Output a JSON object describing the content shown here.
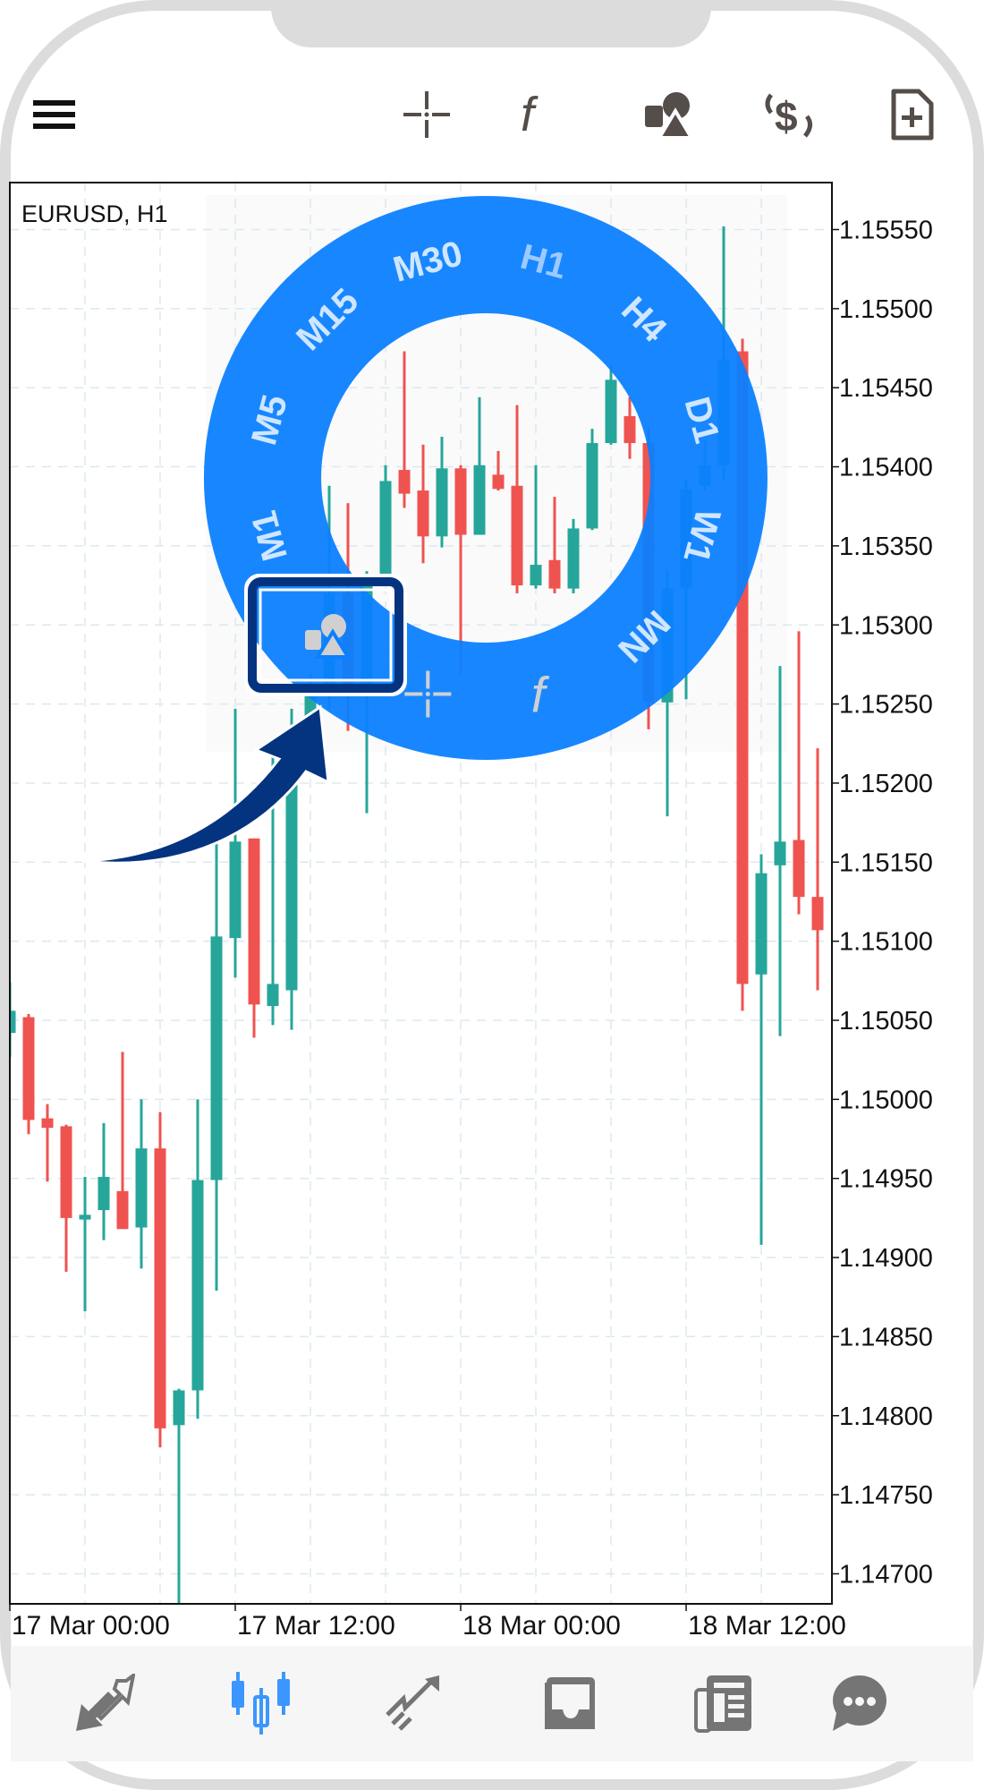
{
  "toolbar": {
    "icons": [
      "menu-icon",
      "crosshair-icon",
      "function-icon",
      "objects-icon",
      "trade-icon",
      "new-order-icon"
    ]
  },
  "chart": {
    "symbol_label": "EURUSD, H1",
    "price_labels": [
      "1.15550",
      "1.15500",
      "1.15450",
      "1.15400",
      "1.15350",
      "1.15300",
      "1.15250",
      "1.15200",
      "1.15150",
      "1.15100",
      "1.15050",
      "1.15000",
      "1.14950",
      "1.14900",
      "1.14850",
      "1.14800",
      "1.14750",
      "1.14700"
    ],
    "time_labels": [
      "17 Mar 00:00",
      "17 Mar 12:00",
      "18 Mar 00:00",
      "18 Mar 12:00"
    ],
    "colors": {
      "bull": "#26a69a",
      "bear": "#ef5350",
      "grid": "#dde8ef"
    }
  },
  "chart_data": {
    "type": "candlestick",
    "symbol": "EURUSD",
    "timeframe": "H1",
    "x_start": "17 Mar 00:00",
    "interval_hours": 1,
    "ylim": [
      1.1468,
      1.1559
    ],
    "grid": true,
    "ohlc": [
      [
        1.15042,
        1.15074,
        1.15027,
        1.15056
      ],
      [
        1.15052,
        1.15054,
        1.14978,
        1.14987
      ],
      [
        1.14988,
        1.14997,
        1.14948,
        1.14982
      ],
      [
        1.14983,
        1.14984,
        1.14891,
        1.14925
      ],
      [
        1.14924,
        1.14951,
        1.14866,
        1.14927
      ],
      [
        1.1493,
        1.14985,
        1.14911,
        1.14951
      ],
      [
        1.14942,
        1.1503,
        1.14918,
        1.14918
      ],
      [
        1.14919,
        1.15,
        1.14893,
        1.14969
      ],
      [
        1.14969,
        1.14992,
        1.1478,
        1.14792
      ],
      [
        1.14794,
        1.14817,
        1.1468,
        1.14816
      ],
      [
        1.14816,
        1.15,
        1.14798,
        1.14949
      ],
      [
        1.14949,
        1.15177,
        1.14879,
        1.15103
      ],
      [
        1.15102,
        1.15247,
        1.15077,
        1.15163
      ],
      [
        1.15165,
        1.15165,
        1.15039,
        1.1506
      ],
      [
        1.15059,
        1.15226,
        1.15047,
        1.15073
      ],
      [
        1.15069,
        1.15247,
        1.15044,
        1.15234
      ],
      [
        1.15234,
        1.15269,
        1.15218,
        1.15262
      ],
      [
        1.15262,
        1.15388,
        1.15247,
        1.1532
      ],
      [
        1.1532,
        1.15377,
        1.15233,
        1.15262
      ],
      [
        1.15262,
        1.15334,
        1.15181,
        1.15332
      ],
      [
        1.15332,
        1.15401,
        1.15327,
        1.15391
      ],
      [
        1.15398,
        1.15473,
        1.15374,
        1.15383
      ],
      [
        1.15385,
        1.15414,
        1.15339,
        1.15356
      ],
      [
        1.15356,
        1.15419,
        1.15349,
        1.15399
      ],
      [
        1.15399,
        1.15401,
        1.15269,
        1.15357
      ],
      [
        1.15357,
        1.15444,
        1.15357,
        1.15401
      ],
      [
        1.15395,
        1.1541,
        1.15385,
        1.15386
      ],
      [
        1.15388,
        1.15439,
        1.1532,
        1.15325
      ],
      [
        1.15325,
        1.15401,
        1.15323,
        1.15338
      ],
      [
        1.15341,
        1.15381,
        1.1532,
        1.15323
      ],
      [
        1.15323,
        1.15367,
        1.1532,
        1.15361
      ],
      [
        1.15361,
        1.15424,
        1.1536,
        1.15415
      ],
      [
        1.15415,
        1.15464,
        1.15414,
        1.15455
      ],
      [
        1.15432,
        1.15444,
        1.15405,
        1.15415
      ],
      [
        1.15415,
        1.15425,
        1.15234,
        1.15251
      ],
      [
        1.15251,
        1.15334,
        1.15179,
        1.15323
      ],
      [
        1.15323,
        1.15392,
        1.15253,
        1.15386
      ],
      [
        1.15388,
        1.15417,
        1.15385,
        1.15401
      ],
      [
        1.15401,
        1.15552,
        1.15392,
        1.15468
      ],
      [
        1.15473,
        1.15481,
        1.15056,
        1.15073
      ],
      [
        1.15079,
        1.15155,
        1.14908,
        1.15143
      ],
      [
        1.15148,
        1.15274,
        1.1504,
        1.15163
      ],
      [
        1.15164,
        1.15296,
        1.15117,
        1.15128
      ],
      [
        1.15128,
        1.15222,
        1.15069,
        1.15107
      ]
    ]
  },
  "wheel": {
    "color": "#0a80ff",
    "label_color": "#cfe6ff",
    "selected_color": "#9ccaff",
    "selected": "H1",
    "timeframes": [
      "M1",
      "M5",
      "M15",
      "M30",
      "H1",
      "H4",
      "D1",
      "W1",
      "MN"
    ],
    "tools": [
      "function-icon",
      "crosshair-icon",
      "objects-icon"
    ],
    "highlighted_tool": "objects-icon"
  },
  "bottom_nav": {
    "items": [
      "quotes-icon",
      "chart-icon",
      "trade-icon",
      "history-icon",
      "news-icon",
      "chat-icon"
    ],
    "active": "chart-icon",
    "active_color": "#3b97ff",
    "icon_color": "#757575"
  }
}
